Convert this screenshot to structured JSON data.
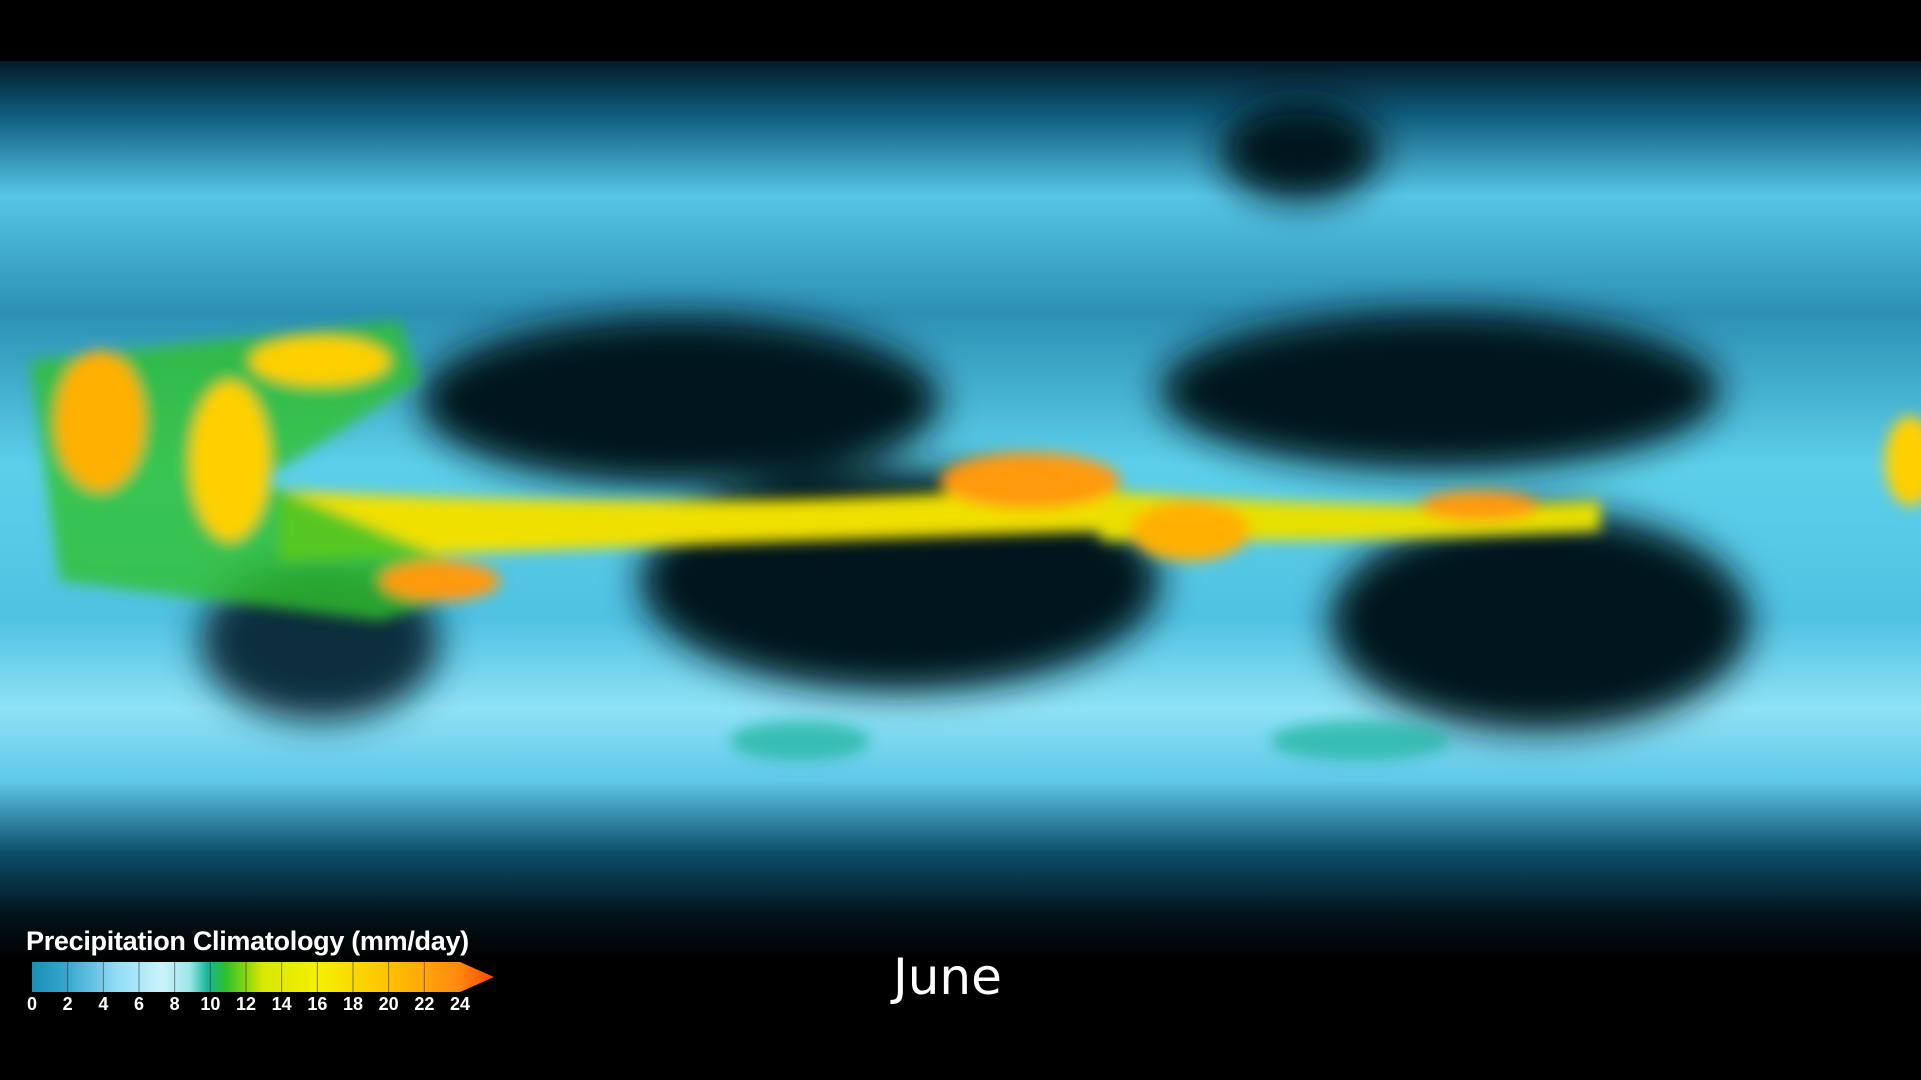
{
  "legend": {
    "title": "Precipitation Climatology (mm/day)",
    "unit": "mm/day",
    "ticks": [
      "0",
      "2",
      "4",
      "6",
      "8",
      "10",
      "12",
      "14",
      "16",
      "18",
      "20",
      "22",
      "24"
    ],
    "range": [
      0,
      24
    ],
    "open_ended_max": true,
    "colors": [
      "#1a8fb8",
      "#8fdcf5",
      "#c9f3fb",
      "#19b49a",
      "#2fc02a",
      "#f5f000",
      "#ffd000",
      "#ff9a10",
      "#ff4a00"
    ]
  },
  "map": {
    "projection": "equirectangular",
    "variable": "precipitation climatology"
  },
  "month_label": "June"
}
